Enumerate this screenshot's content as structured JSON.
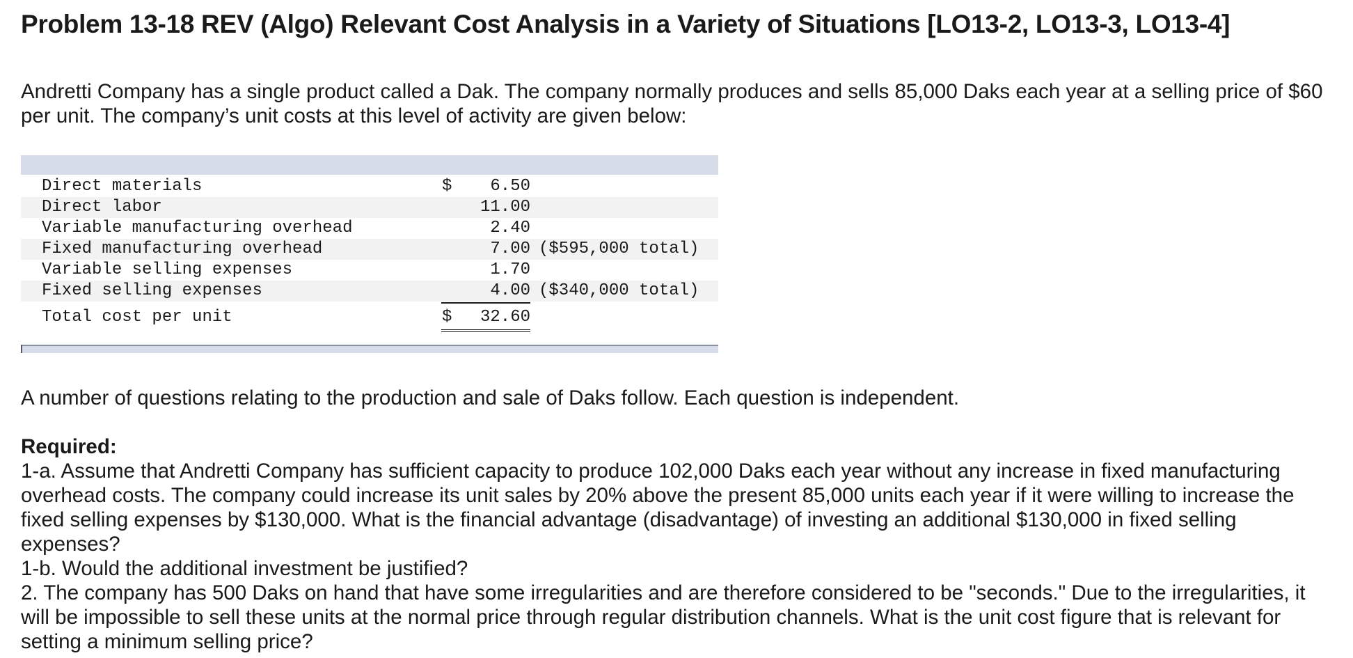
{
  "title": "Problem 13-18 REV (Algo) Relevant Cost Analysis in a Variety of Situations [LO13-2, LO13-3, LO13-4]",
  "intro": "Andretti Company has a single product called a Dak. The company normally produces and sells 85,000 Daks each year at a selling price of $60 per unit. The company’s unit costs at this level of activity are given below:",
  "cost_table": {
    "rows": [
      {
        "label": "Direct materials",
        "currency": "$",
        "amount": "6.50",
        "note": ""
      },
      {
        "label": "Direct labor",
        "currency": "",
        "amount": "11.00",
        "note": ""
      },
      {
        "label": "Variable manufacturing overhead",
        "currency": "",
        "amount": "2.40",
        "note": ""
      },
      {
        "label": "Fixed manufacturing overhead",
        "currency": "",
        "amount": "7.00",
        "note": "($595,000 total)"
      },
      {
        "label": "Variable selling expenses",
        "currency": "",
        "amount": "1.70",
        "note": ""
      },
      {
        "label": "Fixed selling expenses",
        "currency": "",
        "amount": "4.00",
        "note": "($340,000 total)"
      }
    ],
    "total": {
      "label": "Total cost per unit",
      "currency": "$",
      "amount": "32.60"
    }
  },
  "followup": "A number of questions relating to the production and sale of Daks follow. Each question is independent.",
  "required": {
    "heading": "Required:",
    "items": [
      "1-a. Assume that Andretti Company has sufficient capacity to produce 102,000 Daks each year without any increase in fixed manufacturing overhead costs. The company could increase its unit sales by 20% above the present 85,000 units each year if it were willing to increase the fixed selling expenses by $130,000. What is the financial advantage (disadvantage) of investing an additional $130,000 in fixed selling expenses?",
      "1-b. Would the additional investment be justified?",
      "2. The company has 500 Daks on hand that have some irregularities and are therefore considered to be \"seconds.\" Due to the irregularities, it will be impossible to sell these units at the normal price through regular distribution channels. What is the unit cost figure that is relevant for setting a minimum selling price?"
    ]
  }
}
